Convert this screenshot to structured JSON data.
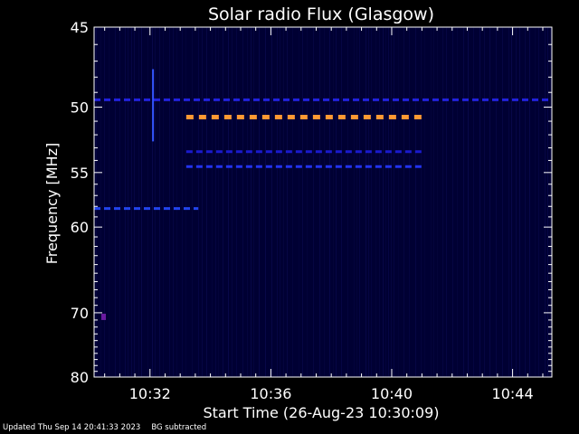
{
  "chart_data": {
    "type": "heatmap",
    "title": "Solar radio Flux (Glasgow)",
    "xlabel": "Start Time (26-Aug-23 10:30:09)",
    "ylabel": "Frequency [MHz]",
    "x_ticks": [
      "10:32",
      "10:36",
      "10:40",
      "10:44"
    ],
    "x_tick_minutes": [
      32,
      36,
      40,
      44
    ],
    "xlim_minutes": [
      30.15,
      45.3
    ],
    "y_ticks": [
      45,
      50,
      55,
      60,
      70,
      80
    ],
    "ylim": [
      45,
      80
    ],
    "y_scale": "reciprocal",
    "background_color": "#000033",
    "grid": false,
    "features": [
      {
        "name": "band",
        "freq_mhz": 49.5,
        "t_start": 30.15,
        "t_end": 45.3,
        "color": "#2222dd"
      },
      {
        "name": "band",
        "freq_mhz": 50.7,
        "t_start": 33.2,
        "t_end": 41.1,
        "color": "#ff9933"
      },
      {
        "name": "band",
        "freq_mhz": 53.3,
        "t_start": 33.2,
        "t_end": 41.1,
        "color": "#1a1acc"
      },
      {
        "name": "band",
        "freq_mhz": 54.5,
        "t_start": 33.2,
        "t_end": 41.1,
        "color": "#2233ee"
      },
      {
        "name": "band",
        "freq_mhz": 58.2,
        "t_start": 30.15,
        "t_end": 33.6,
        "color": "#2244ee"
      },
      {
        "name": "spike",
        "freq_from": 47.5,
        "freq_to": 52.5,
        "time": 32.1,
        "color": "#3355ff"
      },
      {
        "name": "dot",
        "freq_mhz": 70.5,
        "time": 30.45,
        "color": "#6a1aa0"
      }
    ],
    "colors": {
      "axes": "#ffffff",
      "background": "#000033"
    }
  },
  "footer": {
    "updated": "Updated Thu Sep 14 20:41:33 2023",
    "note": "BG subtracted"
  }
}
